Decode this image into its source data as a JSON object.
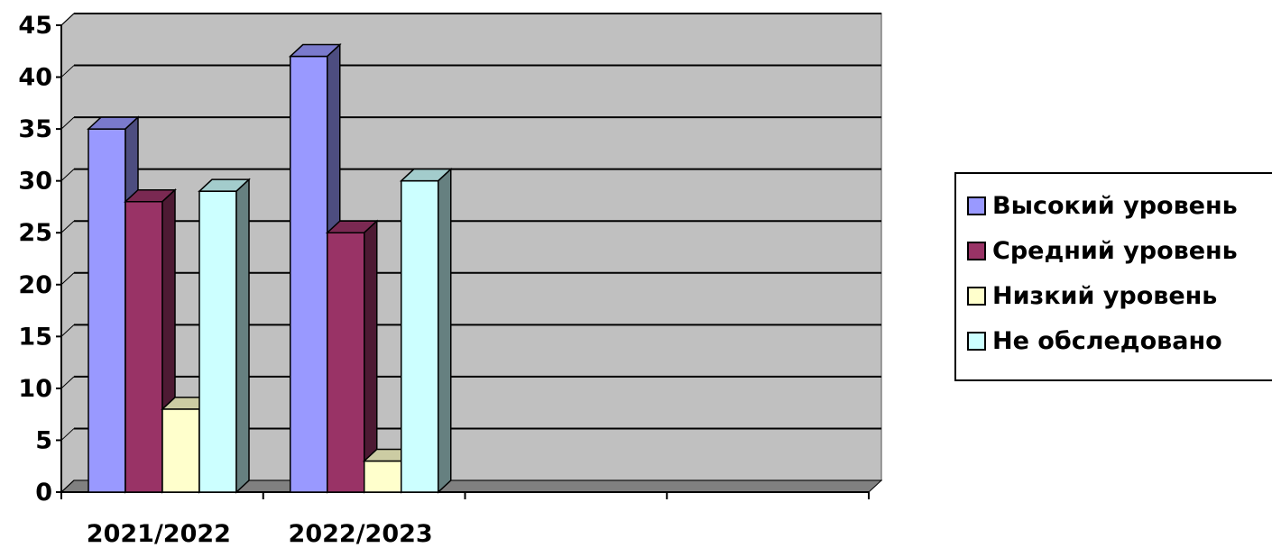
{
  "chart_data": {
    "type": "bar",
    "title": "",
    "xlabel": "",
    "ylabel": "",
    "ylim": [
      0,
      45
    ],
    "yticks": [
      0,
      5,
      10,
      15,
      20,
      25,
      30,
      35,
      40,
      45
    ],
    "categories": [
      "2021/2022",
      "2022/2023",
      "",
      ""
    ],
    "series": [
      {
        "name": "Высокий уровень",
        "values": [
          35,
          42,
          null,
          null
        ],
        "color": "#9999ff"
      },
      {
        "name": "Средний уровень",
        "values": [
          28,
          25,
          null,
          null
        ],
        "color": "#993366"
      },
      {
        "name": "Низкий уровень",
        "values": [
          8,
          3,
          null,
          null
        ],
        "color": "#ffffcc"
      },
      {
        "name": "Не обследовано",
        "values": [
          29,
          30,
          null,
          null
        ],
        "color": "#ccffff"
      }
    ],
    "grid": true,
    "legend_position": "right",
    "style": "3d-clustered-column",
    "plot_background": "#c0c0c0"
  }
}
